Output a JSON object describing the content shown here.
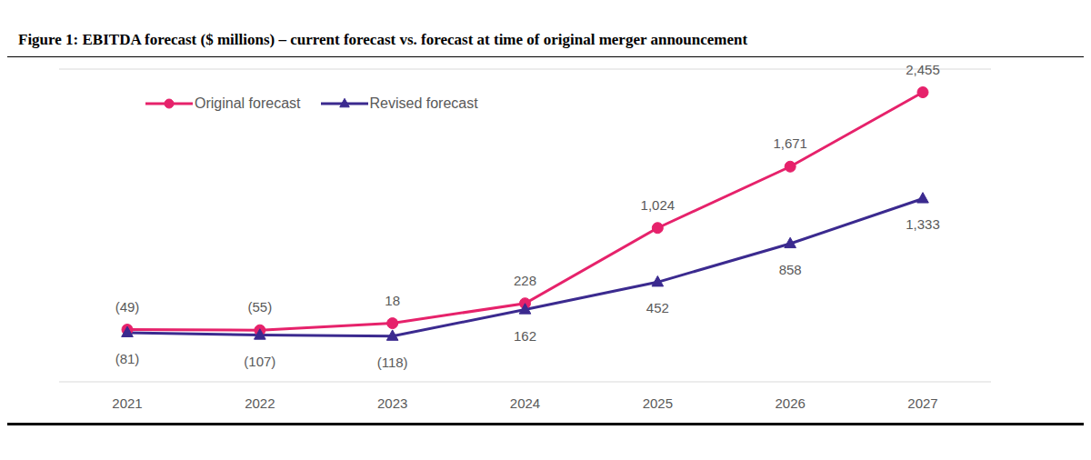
{
  "chart_data": {
    "type": "line",
    "title": "Figure 1: EBITDA forecast ($ millions) – current forecast vs. forecast at time of original merger announcement",
    "categories": [
      "2021",
      "2022",
      "2023",
      "2024",
      "2025",
      "2026",
      "2027"
    ],
    "series": [
      {
        "name": "Original forecast",
        "color": "#e6226b",
        "marker": "circle",
        "values": [
          -49,
          -55,
          18,
          228,
          1024,
          1671,
          2455
        ],
        "value_labels": [
          "(49)",
          "(55)",
          "18",
          "228",
          "1,024",
          "1,671",
          "2,455"
        ]
      },
      {
        "name": "Revised forecast",
        "color": "#3b2a8f",
        "marker": "triangle",
        "values": [
          -81,
          -107,
          -118,
          162,
          452,
          858,
          1333
        ],
        "value_labels": [
          "(81)",
          "(107)",
          "(118)",
          "162",
          "452",
          "858",
          "1,333"
        ]
      }
    ],
    "ylim": [
      -600,
      2700
    ],
    "yticks": [
      0
    ],
    "grid": true,
    "legend": "upper left",
    "data_labels": true,
    "tick_labels": "x"
  }
}
